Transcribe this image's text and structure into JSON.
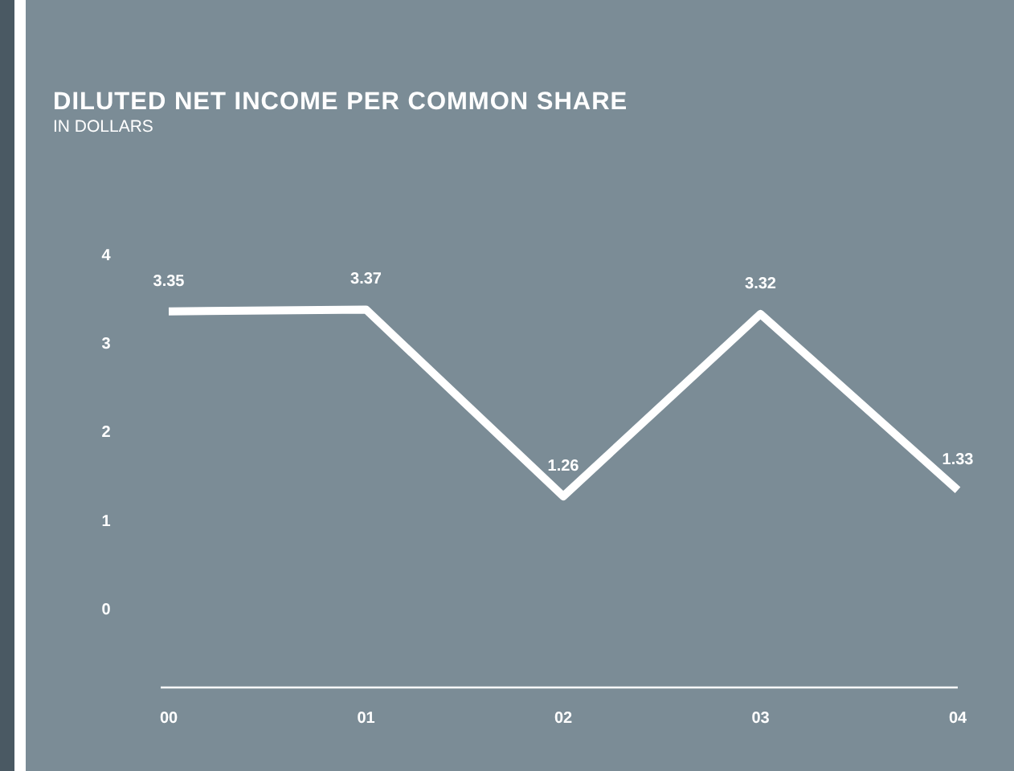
{
  "chart_data": {
    "type": "line",
    "title": "DILUTED NET INCOME PER COMMON SHARE",
    "subtitle": "IN DOLLARS",
    "categories": [
      "00",
      "01",
      "02",
      "03",
      "04"
    ],
    "series": [
      {
        "color": "#ffffff",
        "values": [
          3.35,
          3.37,
          1.26,
          3.32,
          1.33
        ]
      }
    ],
    "ylim": [
      -0.9,
      4
    ],
    "yticks": [
      0,
      1,
      2,
      3,
      4
    ],
    "grid": false,
    "marker": "none",
    "line_style": "solid",
    "data_labels": true
  }
}
